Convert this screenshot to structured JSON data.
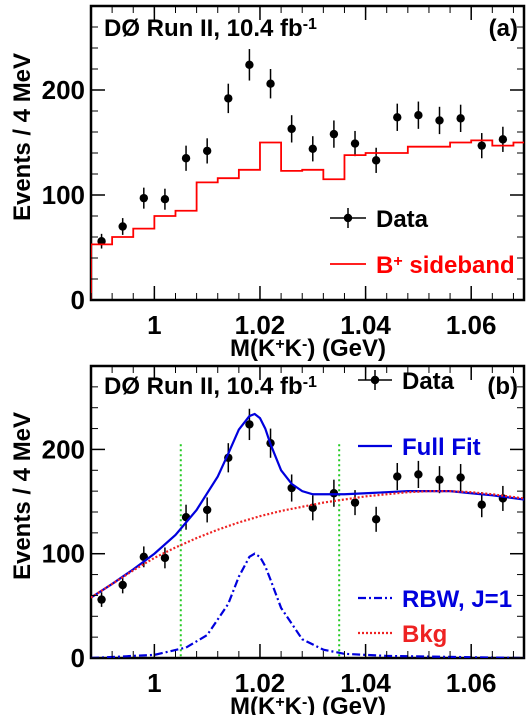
{
  "chart_data": [
    {
      "panel": "(a)",
      "type": "scatter",
      "annotation": "DØ Run II, 10.4 fb",
      "annotation_sup": "-1",
      "xlabel": "M(K",
      "xlabel_parts": [
        "M(K",
        "+",
        "K",
        "-",
        ") (GeV)"
      ],
      "ylabel": "Events /  4 MeV",
      "xlim": [
        0.988,
        1.07
      ],
      "ylim": [
        0,
        280
      ],
      "xticks": [
        1,
        1.02,
        1.04,
        1.06
      ],
      "xtick_labels": [
        "1",
        "1.02",
        "1.04",
        "1.06"
      ],
      "yticks": [
        0,
        100,
        200
      ],
      "ytick_labels": [
        "0",
        "100",
        "200"
      ],
      "legend_position": "right",
      "series": [
        {
          "name": "Data",
          "color": "#000000",
          "x": [
            0.99,
            0.994,
            0.998,
            1.002,
            1.006,
            1.01,
            1.014,
            1.018,
            1.022,
            1.026,
            1.03,
            1.034,
            1.038,
            1.042,
            1.046,
            1.05,
            1.054,
            1.058,
            1.062,
            1.066
          ],
          "y": [
            56,
            70,
            97,
            96,
            135,
            142,
            192,
            224,
            206,
            163,
            144,
            158,
            149,
            133,
            174,
            176,
            171,
            173,
            147,
            153
          ],
          "err": [
            7,
            8,
            10,
            10,
            12,
            12,
            14,
            15,
            14,
            13,
            12,
            13,
            12,
            12,
            13,
            13,
            13,
            13,
            12,
            12
          ]
        },
        {
          "name": "B",
          "name_sup": "+",
          "name_rest": " sideband",
          "color": "#ff0000",
          "type": "step",
          "edges": [
            0.988,
            0.992,
            0.996,
            1.0,
            1.004,
            1.008,
            1.012,
            1.016,
            1.02,
            1.024,
            1.028,
            1.032,
            1.036,
            1.04,
            1.044,
            1.048,
            1.052,
            1.056,
            1.06,
            1.064,
            1.068,
            1.07
          ],
          "values": [
            53,
            60,
            68,
            80,
            85,
            112,
            116,
            124,
            150,
            123,
            124,
            115,
            138,
            140,
            140,
            146,
            146,
            150,
            152,
            147,
            150
          ]
        }
      ]
    },
    {
      "panel": "(b)",
      "type": "line",
      "annotation": "DØ Run II, 10.4 fb",
      "annotation_sup": "-1",
      "xlabel": "M(K",
      "xlabel_parts": [
        "M(K",
        "+",
        "K",
        "-",
        ") (GeV)"
      ],
      "ylabel": "Events /  4 MeV",
      "xlim": [
        0.988,
        1.07
      ],
      "ylim": [
        0,
        280
      ],
      "xticks": [
        1,
        1.02,
        1.04,
        1.06
      ],
      "xtick_labels": [
        "1",
        "1.02",
        "1.04",
        "1.06"
      ],
      "yticks": [
        0,
        100,
        200
      ],
      "ytick_labels": [
        "0",
        "100",
        "200"
      ],
      "legend_position": "right",
      "vertical_lines": {
        "x": [
          1.005,
          1.035
        ],
        "color": "#22cc22",
        "style": "dotted"
      },
      "series": [
        {
          "name": "Data",
          "color": "#000000",
          "type": "points",
          "x": [
            0.99,
            0.994,
            0.998,
            1.002,
            1.006,
            1.01,
            1.014,
            1.018,
            1.022,
            1.026,
            1.03,
            1.034,
            1.038,
            1.042,
            1.046,
            1.05,
            1.054,
            1.058,
            1.062,
            1.066
          ],
          "y": [
            56,
            70,
            97,
            96,
            135,
            142,
            192,
            224,
            206,
            163,
            144,
            158,
            149,
            133,
            174,
            176,
            171,
            173,
            147,
            153
          ],
          "err": [
            7,
            8,
            10,
            10,
            12,
            12,
            14,
            15,
            14,
            13,
            12,
            13,
            12,
            12,
            13,
            13,
            13,
            13,
            12,
            12
          ]
        },
        {
          "name": "Full Fit",
          "color": "#0000dd",
          "style": "solid",
          "x": [
            0.988,
            0.992,
            0.996,
            1.0,
            1.004,
            1.008,
            1.012,
            1.014,
            1.016,
            1.018,
            1.019,
            1.02,
            1.021,
            1.022,
            1.024,
            1.026,
            1.028,
            1.03,
            1.032,
            1.034,
            1.036,
            1.04,
            1.044,
            1.048,
            1.052,
            1.056,
            1.06,
            1.064,
            1.07
          ],
          "y": [
            58,
            71,
            85,
            100,
            118,
            142,
            174,
            196,
            219,
            232,
            234,
            230,
            220,
            205,
            180,
            167,
            160,
            157,
            157,
            157,
            157,
            158,
            159,
            160,
            160,
            160,
            158,
            156,
            152
          ]
        },
        {
          "name": "RBW, J=1",
          "color": "#0000dd",
          "style": "dashdot",
          "x": [
            0.988,
            1.0,
            1.006,
            1.01,
            1.014,
            1.016,
            1.018,
            1.019,
            1.02,
            1.021,
            1.022,
            1.024,
            1.028,
            1.032,
            1.036,
            1.044,
            1.07
          ],
          "y": [
            0,
            3,
            10,
            22,
            52,
            78,
            97,
            100,
            97,
            88,
            75,
            48,
            18,
            8,
            4,
            2,
            0
          ]
        },
        {
          "name": "Bkg",
          "color": "#ee2222",
          "style": "dotted",
          "x": [
            0.988,
            0.992,
            0.996,
            1.0,
            1.004,
            1.008,
            1.012,
            1.016,
            1.02,
            1.024,
            1.028,
            1.032,
            1.036,
            1.04,
            1.044,
            1.048,
            1.052,
            1.056,
            1.06,
            1.064,
            1.07
          ],
          "y": [
            58,
            71,
            84,
            96,
            106,
            115,
            123,
            130,
            136,
            141,
            145,
            149,
            152,
            155,
            157,
            159,
            160,
            160,
            159,
            157,
            153
          ]
        }
      ]
    }
  ]
}
